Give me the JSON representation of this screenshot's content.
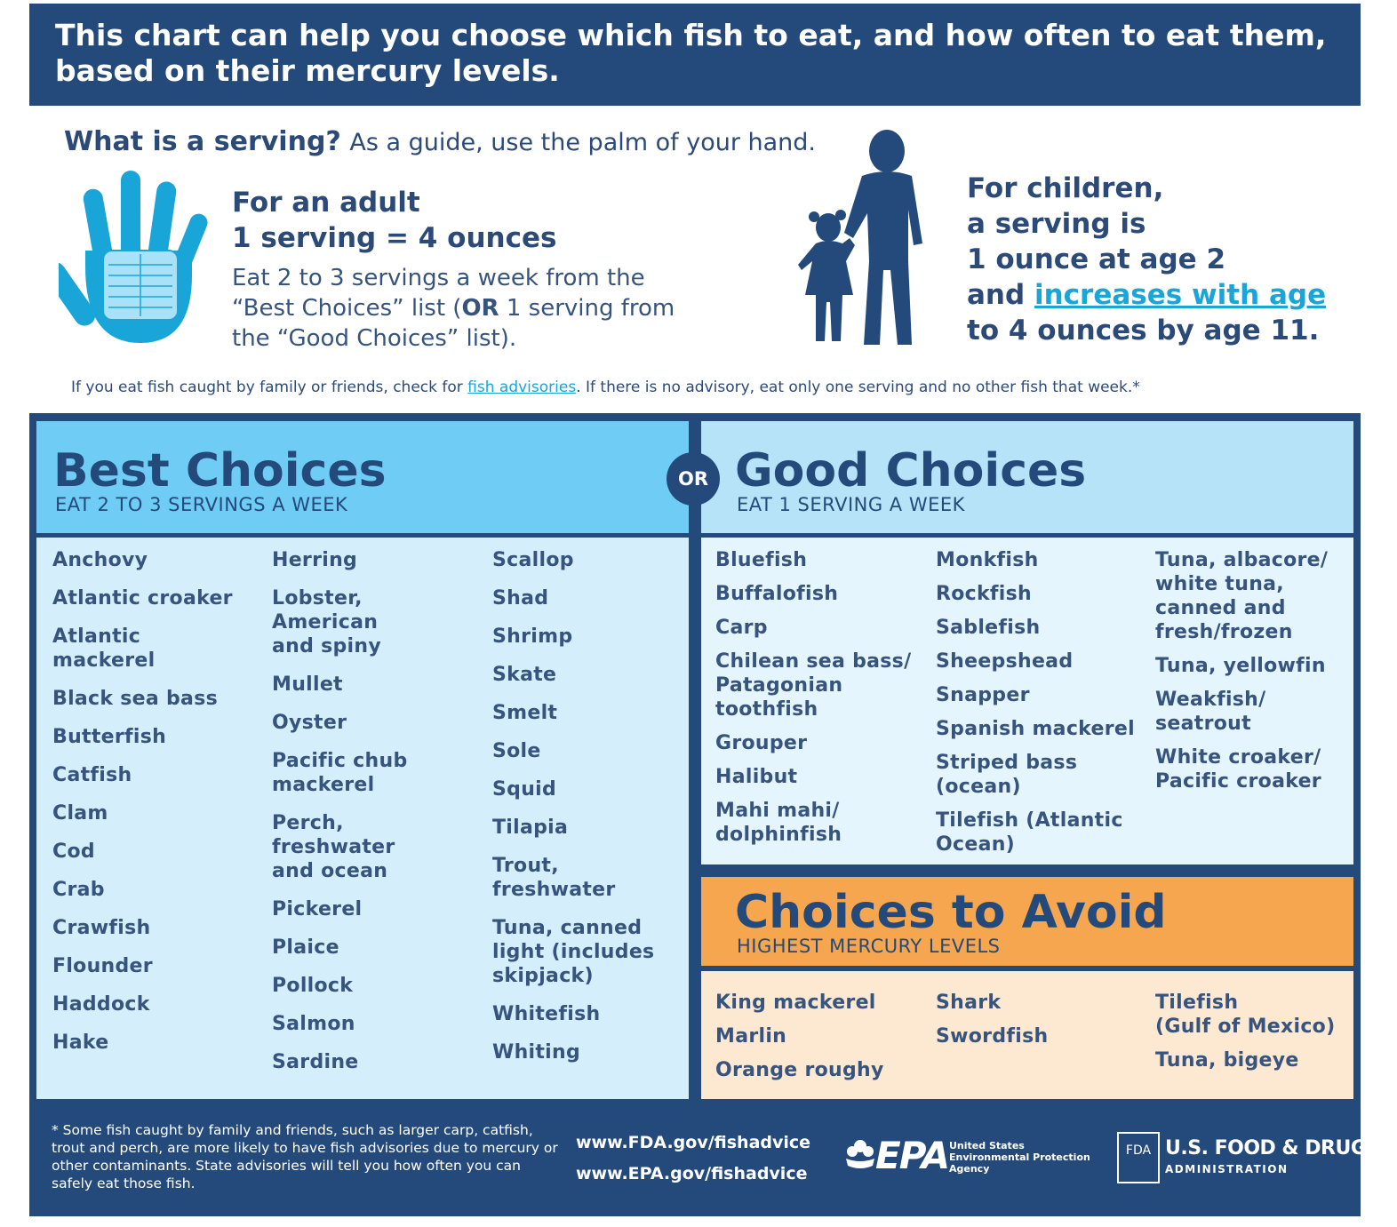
{
  "header": {
    "text": "This chart can help you choose which fish to eat, and how often to eat them, based on their mercury levels."
  },
  "serving": {
    "question": "What is a serving?",
    "guide": "As a guide, use the palm of your hand.",
    "adult_line1": "For an adult",
    "adult_line2": "1 serving = 4 ounces",
    "adult_body_a": "Eat 2 to 3 servings a week from the “Best Choices” list (",
    "adult_body_or": "OR",
    "adult_body_b": " 1 serving from the “Good Choices” list).",
    "child_line1": "For children,",
    "child_line2": "a serving is",
    "child_line3": "1 ounce at age 2",
    "child_line4_a": "and ",
    "child_line4_link": "increases with age",
    "child_line5": "to 4 ounces by age 11."
  },
  "advisory": {
    "before": "If you eat fish caught by family or friends, check for ",
    "link": "fish advisories",
    "after": ". If there is no advisory, eat only one serving and no other fish that week.*"
  },
  "best": {
    "title": "Best Choices",
    "subtitle": "EAT 2 TO 3 SERVINGS A WEEK",
    "columns": [
      [
        "Anchovy",
        "Atlantic croaker",
        "Atlantic\nmackerel",
        "Black sea bass",
        "Butterfish",
        "Catfish",
        "Clam",
        "Cod",
        "Crab",
        "Crawfish",
        "Flounder",
        "Haddock",
        "Hake"
      ],
      [
        "Herring",
        "Lobster,\nAmerican\nand spiny",
        "Mullet",
        "Oyster",
        "Pacific chub\nmackerel",
        "Perch,\nfreshwater\nand ocean",
        "Pickerel",
        "Plaice",
        "Pollock",
        "Salmon",
        "Sardine"
      ],
      [
        "Scallop",
        "Shad",
        "Shrimp",
        "Skate",
        "Smelt",
        "Sole",
        "Squid",
        "Tilapia",
        "Trout, freshwater",
        "Tuna, canned\nlight (includes\nskipjack)",
        "Whitefish",
        "Whiting"
      ]
    ]
  },
  "or_label": "OR",
  "good": {
    "title": "Good Choices",
    "subtitle": "EAT 1 SERVING A WEEK",
    "columns": [
      [
        "Bluefish",
        "Buffalofish",
        "Carp",
        "Chilean sea bass/\nPatagonian\ntoothfish",
        "Grouper",
        "Halibut",
        "Mahi mahi/\ndolphinfish"
      ],
      [
        "Monkfish",
        "Rockfish",
        "Sablefish",
        "Sheepshead",
        "Snapper",
        "Spanish mackerel",
        "Striped bass\n(ocean)",
        "Tilefish (Atlantic\nOcean)"
      ],
      [
        "Tuna, albacore/\nwhite tuna,\ncanned and\nfresh/frozen",
        "Tuna, yellowfin",
        "Weakfish/\nseatrout",
        "White croaker/\nPacific croaker"
      ]
    ]
  },
  "avoid": {
    "title": "Choices to Avoid",
    "subtitle": "HIGHEST MERCURY LEVELS",
    "columns": [
      [
        "King mackerel",
        "Marlin",
        "Orange roughy"
      ],
      [
        "Shark",
        "Swordfish"
      ],
      [
        "Tilefish\n(Gulf of Mexico)",
        "Tuna, bigeye"
      ]
    ]
  },
  "footer": {
    "footnote": "* Some fish caught by family and friends, such as larger carp, catfish, trout and perch, are more likely to have fish advisories due to mercury or other contaminants. State advisories will tell you how often you can safely eat those fish.",
    "url_fda": "www.FDA.gov/fishadvice",
    "url_epa": "www.EPA.gov/fishadvice",
    "epa_logo": "EPA",
    "epa_agency": "United States Environmental Protection Agency",
    "fda_mark": "FDA",
    "fda_name": "U.S. FOOD & DRUG",
    "fda_admin": "ADMINISTRATION"
  },
  "colors": {
    "navy": "#244a7b",
    "best": "#6fcdf5",
    "good": "#b7e3f8",
    "avoid": "#f5a64f",
    "link": "#1aa5d8"
  },
  "icons": [
    "hand-palm-icon",
    "children-silhouette-icon",
    "epa-flower-icon"
  ]
}
